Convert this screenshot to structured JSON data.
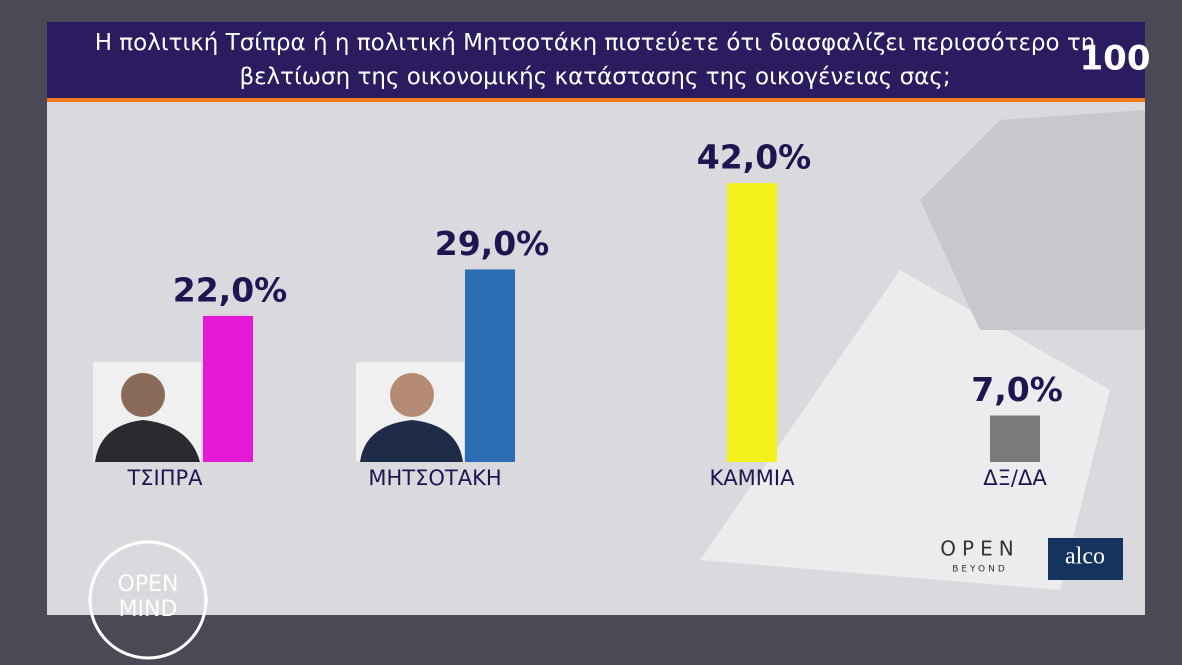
{
  "chart_data": {
    "type": "bar",
    "title": "Η πολιτική Τσίπρα ή η πολιτική Μητσοτάκη πιστεύετε ότι διασφαλίζει περισσότερο τη βελτίωση της οικονομικής κατάστασης της οικογένειας σας;",
    "categories": [
      "ΤΣΙΠΡΑ",
      "ΜΗΤΣΟΤΑΚΗ",
      "ΚΑΜΜΙΑ",
      "ΔΞ/ΔΑ"
    ],
    "values": [
      22,
      29,
      42,
      7
    ],
    "value_labels": [
      "22,0%",
      "29,0%",
      "42,0%",
      "7,0%"
    ],
    "colors": [
      "#e51ad6",
      "#2a6db3",
      "#f4f21c",
      "#7a7a7a"
    ]
  },
  "logos": {
    "channel": "100",
    "open": "OPEN",
    "beyond": "BEYOND",
    "alco": "alco",
    "open_mind": [
      "OPEN",
      "MIND"
    ]
  }
}
